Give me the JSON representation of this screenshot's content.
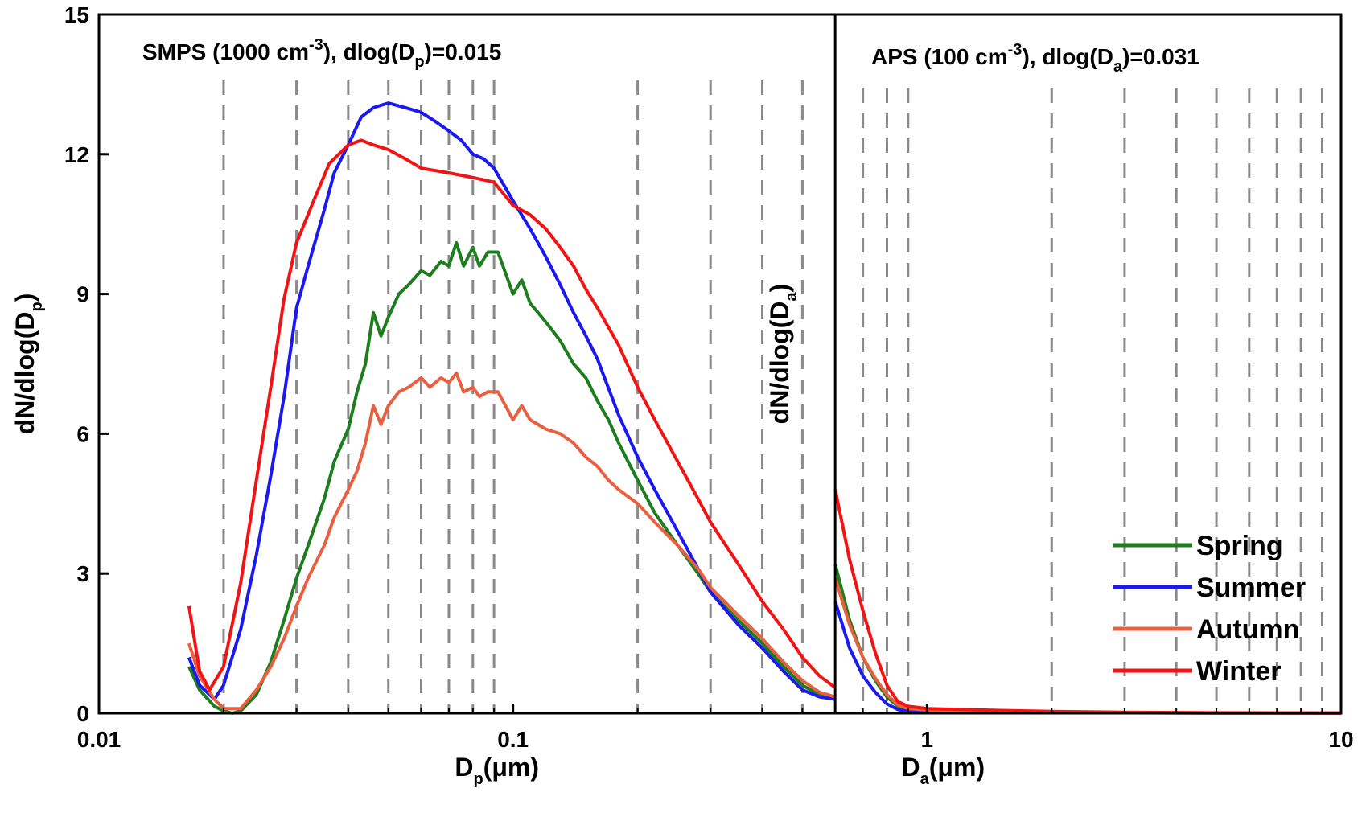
{
  "chart_data": {
    "type": "line",
    "y_axis": {
      "label_main": "dN/dlog(D",
      "label_sub": "p",
      "label_end": ")",
      "range": [
        0,
        15
      ],
      "ticks": [
        {
          "value": 0,
          "label": "0"
        },
        {
          "value": 3,
          "label": "3"
        },
        {
          "value": 6,
          "label": "6"
        },
        {
          "value": 9,
          "label": "9"
        },
        {
          "value": 12,
          "label": "12"
        },
        {
          "value": 15,
          "label": "15"
        }
      ]
    },
    "inner_y_label": {
      "main": "dN/dlog(D",
      "sub": "a",
      "end": ")"
    },
    "x_axis": {
      "scale": "log",
      "range": [
        0.01,
        10
      ],
      "ticks": [
        {
          "value": 0.01,
          "label": "0.01"
        },
        {
          "value": 0.1,
          "label": "0.1"
        },
        {
          "value": 1,
          "label": "1"
        },
        {
          "value": 10,
          "label": "10"
        }
      ],
      "label_left": {
        "main": "D",
        "sub": "p",
        "end": "(μm)"
      },
      "label_right": {
        "main": "D",
        "sub": "a",
        "end": "(μm)"
      }
    },
    "panel_split": 0.6,
    "panels": [
      {
        "main": "SMPS (1000 cm",
        "sup": "-3",
        "mid": "), dlog(D",
        "sub": "p",
        "end": ")=0.015"
      },
      {
        "main": "APS (100 cm",
        "sup": "-3",
        "mid": "), dlog(D",
        "sub": "a",
        "end": ")=0.031"
      }
    ],
    "grid_lines_x": [
      0.02,
      0.03,
      0.04,
      0.05,
      0.06,
      0.07,
      0.08,
      0.09,
      0.2,
      0.3,
      0.4,
      0.5,
      0.7,
      0.8,
      0.9,
      2,
      3,
      4,
      5,
      6,
      7,
      8,
      9
    ],
    "legend": {
      "position": "bottom-right"
    },
    "series": [
      {
        "name": "Spring",
        "color": "#1e7d1e",
        "smps": [
          [
            0.0165,
            1.0
          ],
          [
            0.0175,
            0.5
          ],
          [
            0.019,
            0.15
          ],
          [
            0.02,
            0.05
          ],
          [
            0.021,
            0.0
          ],
          [
            0.022,
            0.05
          ],
          [
            0.024,
            0.4
          ],
          [
            0.026,
            1.1
          ],
          [
            0.028,
            2.0
          ],
          [
            0.03,
            2.9
          ],
          [
            0.032,
            3.6
          ],
          [
            0.035,
            4.6
          ],
          [
            0.037,
            5.4
          ],
          [
            0.04,
            6.1
          ],
          [
            0.042,
            6.9
          ],
          [
            0.044,
            7.5
          ],
          [
            0.046,
            8.6
          ],
          [
            0.048,
            8.1
          ],
          [
            0.05,
            8.5
          ],
          [
            0.053,
            9.0
          ],
          [
            0.056,
            9.2
          ],
          [
            0.06,
            9.5
          ],
          [
            0.063,
            9.4
          ],
          [
            0.067,
            9.7
          ],
          [
            0.07,
            9.6
          ],
          [
            0.073,
            10.1
          ],
          [
            0.076,
            9.6
          ],
          [
            0.08,
            10.0
          ],
          [
            0.083,
            9.6
          ],
          [
            0.087,
            9.9
          ],
          [
            0.092,
            9.9
          ],
          [
            0.1,
            9.0
          ],
          [
            0.105,
            9.3
          ],
          [
            0.11,
            8.8
          ],
          [
            0.115,
            8.6
          ],
          [
            0.12,
            8.4
          ],
          [
            0.13,
            8.0
          ],
          [
            0.14,
            7.5
          ],
          [
            0.15,
            7.2
          ],
          [
            0.16,
            6.7
          ],
          [
            0.17,
            6.3
          ],
          [
            0.18,
            5.8
          ],
          [
            0.2,
            5.0
          ],
          [
            0.22,
            4.3
          ],
          [
            0.25,
            3.6
          ],
          [
            0.28,
            3.0
          ],
          [
            0.3,
            2.6
          ],
          [
            0.35,
            2.0
          ],
          [
            0.4,
            1.5
          ],
          [
            0.45,
            1.0
          ],
          [
            0.5,
            0.6
          ],
          [
            0.55,
            0.4
          ],
          [
            0.6,
            0.3
          ]
        ],
        "aps": [
          [
            0.6,
            3.2
          ],
          [
            0.65,
            2.0
          ],
          [
            0.7,
            1.2
          ],
          [
            0.75,
            0.7
          ],
          [
            0.8,
            0.35
          ],
          [
            0.85,
            0.15
          ],
          [
            0.9,
            0.1
          ],
          [
            1,
            0.07
          ],
          [
            1.5,
            0.04
          ],
          [
            2,
            0.02
          ],
          [
            3,
            0.01
          ],
          [
            5,
            0.005
          ],
          [
            10,
            0.003
          ]
        ]
      },
      {
        "name": "Summer",
        "color": "#1919f0",
        "smps": [
          [
            0.0165,
            1.2
          ],
          [
            0.0175,
            0.6
          ],
          [
            0.019,
            0.3
          ],
          [
            0.02,
            0.6
          ],
          [
            0.022,
            1.8
          ],
          [
            0.024,
            3.4
          ],
          [
            0.026,
            5.1
          ],
          [
            0.028,
            6.8
          ],
          [
            0.03,
            8.7
          ],
          [
            0.032,
            9.6
          ],
          [
            0.035,
            10.8
          ],
          [
            0.037,
            11.6
          ],
          [
            0.04,
            12.2
          ],
          [
            0.043,
            12.8
          ],
          [
            0.046,
            13.0
          ],
          [
            0.05,
            13.1
          ],
          [
            0.055,
            13.0
          ],
          [
            0.06,
            12.9
          ],
          [
            0.065,
            12.7
          ],
          [
            0.07,
            12.5
          ],
          [
            0.075,
            12.3
          ],
          [
            0.08,
            12.0
          ],
          [
            0.085,
            11.9
          ],
          [
            0.09,
            11.7
          ],
          [
            0.1,
            11.0
          ],
          [
            0.11,
            10.4
          ],
          [
            0.12,
            9.8
          ],
          [
            0.13,
            9.2
          ],
          [
            0.14,
            8.6
          ],
          [
            0.15,
            8.1
          ],
          [
            0.16,
            7.6
          ],
          [
            0.18,
            6.4
          ],
          [
            0.2,
            5.5
          ],
          [
            0.22,
            4.8
          ],
          [
            0.25,
            3.9
          ],
          [
            0.28,
            3.1
          ],
          [
            0.3,
            2.6
          ],
          [
            0.35,
            1.9
          ],
          [
            0.4,
            1.4
          ],
          [
            0.45,
            0.9
          ],
          [
            0.5,
            0.5
          ],
          [
            0.55,
            0.35
          ],
          [
            0.6,
            0.3
          ]
        ],
        "aps": [
          [
            0.6,
            2.4
          ],
          [
            0.65,
            1.4
          ],
          [
            0.7,
            0.8
          ],
          [
            0.75,
            0.45
          ],
          [
            0.8,
            0.2
          ],
          [
            0.85,
            0.08
          ],
          [
            0.9,
            0.04
          ],
          [
            1,
            0.02
          ],
          [
            2,
            0.01
          ],
          [
            10,
            0.003
          ]
        ]
      },
      {
        "name": "Autumn",
        "color": "#e86040",
        "smps": [
          [
            0.0165,
            1.5
          ],
          [
            0.0175,
            0.8
          ],
          [
            0.019,
            0.3
          ],
          [
            0.02,
            0.1
          ],
          [
            0.022,
            0.1
          ],
          [
            0.024,
            0.5
          ],
          [
            0.026,
            1.0
          ],
          [
            0.028,
            1.6
          ],
          [
            0.03,
            2.3
          ],
          [
            0.032,
            2.9
          ],
          [
            0.035,
            3.6
          ],
          [
            0.037,
            4.2
          ],
          [
            0.04,
            4.8
          ],
          [
            0.042,
            5.2
          ],
          [
            0.044,
            5.8
          ],
          [
            0.046,
            6.6
          ],
          [
            0.048,
            6.2
          ],
          [
            0.05,
            6.6
          ],
          [
            0.053,
            6.9
          ],
          [
            0.056,
            7.0
          ],
          [
            0.06,
            7.2
          ],
          [
            0.063,
            7.0
          ],
          [
            0.067,
            7.2
          ],
          [
            0.07,
            7.1
          ],
          [
            0.073,
            7.3
          ],
          [
            0.076,
            6.9
          ],
          [
            0.08,
            7.0
          ],
          [
            0.083,
            6.8
          ],
          [
            0.087,
            6.9
          ],
          [
            0.092,
            6.9
          ],
          [
            0.1,
            6.3
          ],
          [
            0.105,
            6.6
          ],
          [
            0.11,
            6.3
          ],
          [
            0.12,
            6.1
          ],
          [
            0.13,
            6.0
          ],
          [
            0.14,
            5.8
          ],
          [
            0.15,
            5.5
          ],
          [
            0.16,
            5.3
          ],
          [
            0.17,
            5.0
          ],
          [
            0.18,
            4.8
          ],
          [
            0.2,
            4.5
          ],
          [
            0.22,
            4.1
          ],
          [
            0.25,
            3.6
          ],
          [
            0.28,
            3.1
          ],
          [
            0.3,
            2.7
          ],
          [
            0.35,
            2.1
          ],
          [
            0.4,
            1.6
          ],
          [
            0.45,
            1.1
          ],
          [
            0.5,
            0.7
          ],
          [
            0.55,
            0.45
          ],
          [
            0.6,
            0.35
          ]
        ],
        "aps": [
          [
            0.6,
            2.9
          ],
          [
            0.65,
            1.9
          ],
          [
            0.7,
            1.2
          ],
          [
            0.75,
            0.75
          ],
          [
            0.8,
            0.4
          ],
          [
            0.85,
            0.18
          ],
          [
            0.9,
            0.1
          ],
          [
            1,
            0.07
          ],
          [
            1.5,
            0.04
          ],
          [
            2,
            0.02
          ],
          [
            3,
            0.01
          ],
          [
            5,
            0.005
          ],
          [
            10,
            0.003
          ]
        ]
      },
      {
        "name": "Winter",
        "color": "#f21414",
        "smps": [
          [
            0.0165,
            2.3
          ],
          [
            0.0175,
            0.9
          ],
          [
            0.0185,
            0.5
          ],
          [
            0.02,
            1.0
          ],
          [
            0.022,
            2.8
          ],
          [
            0.024,
            5.0
          ],
          [
            0.026,
            7.0
          ],
          [
            0.028,
            8.9
          ],
          [
            0.03,
            10.1
          ],
          [
            0.033,
            11.0
          ],
          [
            0.036,
            11.8
          ],
          [
            0.04,
            12.2
          ],
          [
            0.043,
            12.3
          ],
          [
            0.046,
            12.2
          ],
          [
            0.05,
            12.1
          ],
          [
            0.055,
            11.9
          ],
          [
            0.06,
            11.7
          ],
          [
            0.07,
            11.6
          ],
          [
            0.08,
            11.5
          ],
          [
            0.09,
            11.4
          ],
          [
            0.1,
            10.9
          ],
          [
            0.11,
            10.7
          ],
          [
            0.12,
            10.4
          ],
          [
            0.13,
            10.0
          ],
          [
            0.14,
            9.6
          ],
          [
            0.15,
            9.1
          ],
          [
            0.16,
            8.7
          ],
          [
            0.18,
            7.9
          ],
          [
            0.2,
            7.0
          ],
          [
            0.22,
            6.3
          ],
          [
            0.25,
            5.4
          ],
          [
            0.28,
            4.6
          ],
          [
            0.3,
            4.1
          ],
          [
            0.35,
            3.2
          ],
          [
            0.4,
            2.4
          ],
          [
            0.45,
            1.8
          ],
          [
            0.5,
            1.2
          ],
          [
            0.55,
            0.8
          ],
          [
            0.6,
            0.55
          ]
        ],
        "aps": [
          [
            0.6,
            4.8
          ],
          [
            0.65,
            3.3
          ],
          [
            0.7,
            2.2
          ],
          [
            0.75,
            1.3
          ],
          [
            0.8,
            0.6
          ],
          [
            0.85,
            0.25
          ],
          [
            0.9,
            0.15
          ],
          [
            1,
            0.1
          ],
          [
            1.5,
            0.06
          ],
          [
            2,
            0.04
          ],
          [
            3,
            0.02
          ],
          [
            5,
            0.01
          ],
          [
            10,
            0.005
          ]
        ]
      }
    ]
  }
}
